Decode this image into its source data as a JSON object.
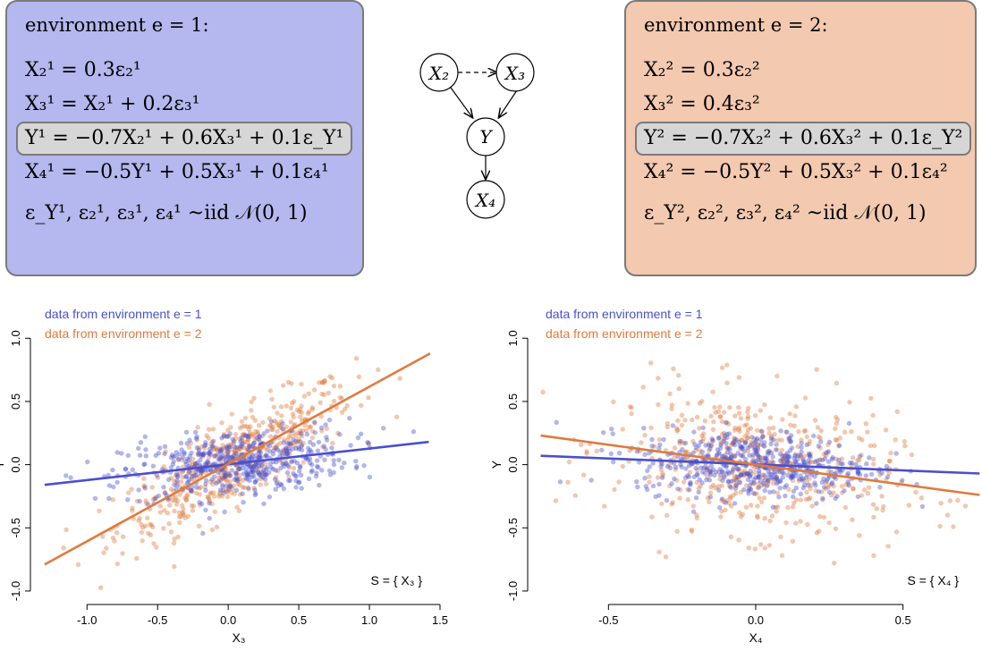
{
  "environments": [
    {
      "id": "env1",
      "title": "environment e = 1:",
      "equations": [
        "X₂¹ = 0.3ε₂¹",
        "X₃¹ = X₂¹ + 0.2ε₃¹",
        "Y¹ = −0.7X₂¹ + 0.6X₃¹ + 0.1ε_Y¹",
        "X₄¹ = −0.5Y¹ + 0.5X₃¹ + 0.1ε₄¹"
      ],
      "noise": "ε_Y¹, ε₂¹, ε₃¹, ε₄¹ ~iid 𝒩(0, 1)",
      "color": "#b4b8ee"
    },
    {
      "id": "env2",
      "title": "environment e = 2:",
      "equations": [
        "X₂² = 0.3ε₂²",
        "X₃² = 0.4ε₃²",
        "Y² = −0.7X₂² + 0.6X₃² + 0.1ε_Y²",
        "X₄² = −0.5Y² + 0.5X₃² + 0.1ε₄²"
      ],
      "noise": "ε_Y², ε₂², ε₃², ε₄² ~iid 𝒩(0, 1)",
      "color": "#f3c9b0"
    }
  ],
  "dag": {
    "nodes": {
      "x2": "X₂",
      "x3": "X₃",
      "y": "Y",
      "x4": "X₄"
    }
  },
  "colors": {
    "env1": "#4a50cc",
    "env2": "#e07a3c"
  },
  "chart_data": [
    {
      "type": "scatter",
      "xlabel": "X₃",
      "ylabel": "Y",
      "xlim": [
        -1.35,
        1.5
      ],
      "ylim": [
        -1.05,
        1.2
      ],
      "xticks": [
        -1.0,
        -0.5,
        0.0,
        0.5,
        1.0,
        1.5
      ],
      "yticks": [
        -1.0,
        -0.5,
        0.0,
        0.5,
        1.0
      ],
      "annotation": "S = { X₃ }",
      "series": [
        {
          "name": "data from environment e = 1",
          "env": "env1",
          "fit": [
            [
              -1.3,
              -0.16
            ],
            [
              1.42,
              0.18
            ]
          ]
        },
        {
          "name": "data from environment e = 2",
          "env": "env2",
          "fit": [
            [
              -1.3,
              -0.79
            ],
            [
              1.43,
              0.88
            ]
          ]
        }
      ]
    },
    {
      "type": "scatter",
      "xlabel": "X₄",
      "ylabel": "Y",
      "xlim": [
        -0.75,
        0.75
      ],
      "ylim": [
        -1.05,
        1.2
      ],
      "xticks": [
        -0.5,
        0.0,
        0.5
      ],
      "yticks": [
        -1.0,
        -0.5,
        0.0,
        0.5,
        1.0
      ],
      "annotation": "S = { X₄ }",
      "series": [
        {
          "name": "data from environment e = 1",
          "env": "env1",
          "fit": [
            [
              -0.73,
              0.07
            ],
            [
              0.76,
              -0.07
            ]
          ]
        },
        {
          "name": "data from environment e = 2",
          "env": "env2",
          "fit": [
            [
              -0.73,
              0.23
            ],
            [
              0.76,
              -0.24
            ]
          ]
        }
      ]
    }
  ]
}
